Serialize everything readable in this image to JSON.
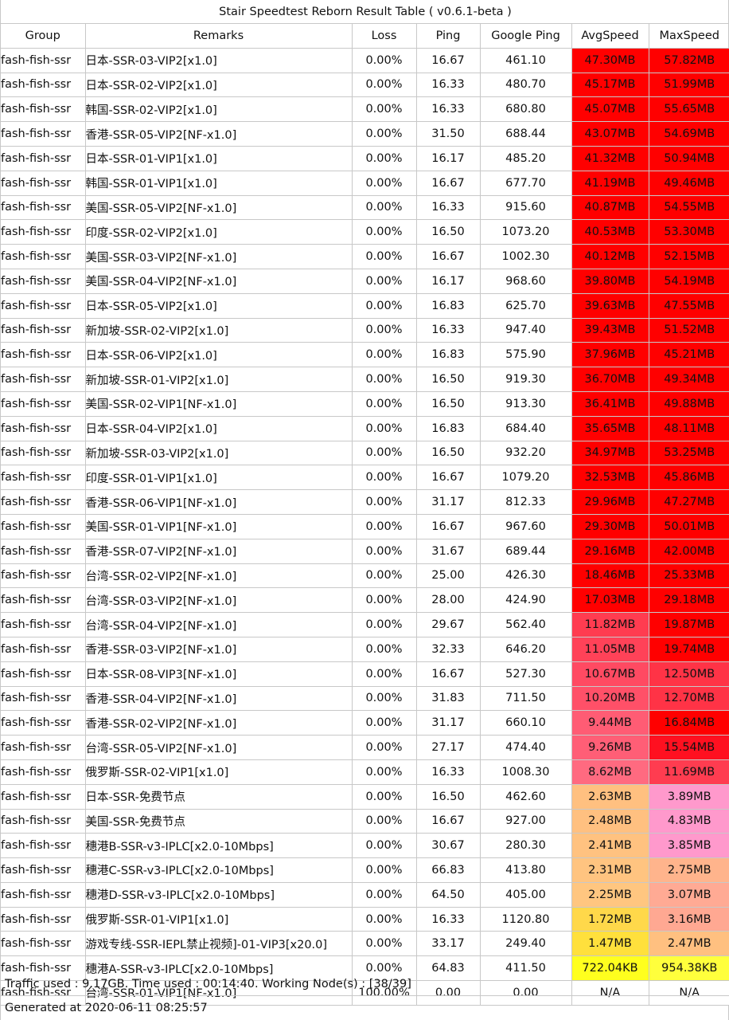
{
  "title": "Stair Speedtest Reborn Result Table ( v0.6.1-beta )",
  "columns": [
    "Group",
    "Remarks",
    "Loss",
    "Ping",
    "Google Ping",
    "AvgSpeed",
    "MaxSpeed"
  ],
  "rows": [
    {
      "group": "fash-fish-ssr",
      "remarks": "日本-SSR-03-VIP2[x1.0]",
      "loss": "0.00%",
      "ping": "16.67",
      "google_ping": "461.10",
      "avg": "47.30MB",
      "max": "57.82MB",
      "avg_color": "#ff0000",
      "max_color": "#ff0000"
    },
    {
      "group": "fash-fish-ssr",
      "remarks": "日本-SSR-02-VIP2[x1.0]",
      "loss": "0.00%",
      "ping": "16.33",
      "google_ping": "480.70",
      "avg": "45.17MB",
      "max": "51.99MB",
      "avg_color": "#ff0000",
      "max_color": "#ff0000"
    },
    {
      "group": "fash-fish-ssr",
      "remarks": "韩国-SSR-02-VIP2[x1.0]",
      "loss": "0.00%",
      "ping": "16.33",
      "google_ping": "680.80",
      "avg": "45.07MB",
      "max": "55.65MB",
      "avg_color": "#ff0000",
      "max_color": "#ff0000"
    },
    {
      "group": "fash-fish-ssr",
      "remarks": "香港-SSR-05-VIP2[NF-x1.0]",
      "loss": "0.00%",
      "ping": "31.50",
      "google_ping": "688.44",
      "avg": "43.07MB",
      "max": "54.69MB",
      "avg_color": "#ff0000",
      "max_color": "#ff0000"
    },
    {
      "group": "fash-fish-ssr",
      "remarks": "日本-SSR-01-VIP1[x1.0]",
      "loss": "0.00%",
      "ping": "16.17",
      "google_ping": "485.20",
      "avg": "41.32MB",
      "max": "50.94MB",
      "avg_color": "#ff0000",
      "max_color": "#ff0000"
    },
    {
      "group": "fash-fish-ssr",
      "remarks": "韩国-SSR-01-VIP1[x1.0]",
      "loss": "0.00%",
      "ping": "16.67",
      "google_ping": "677.70",
      "avg": "41.19MB",
      "max": "49.46MB",
      "avg_color": "#ff0000",
      "max_color": "#ff0000"
    },
    {
      "group": "fash-fish-ssr",
      "remarks": "美国-SSR-05-VIP2[NF-x1.0]",
      "loss": "0.00%",
      "ping": "16.33",
      "google_ping": "915.60",
      "avg": "40.87MB",
      "max": "54.55MB",
      "avg_color": "#ff0000",
      "max_color": "#ff0000"
    },
    {
      "group": "fash-fish-ssr",
      "remarks": "印度-SSR-02-VIP2[x1.0]",
      "loss": "0.00%",
      "ping": "16.50",
      "google_ping": "1073.20",
      "avg": "40.53MB",
      "max": "53.30MB",
      "avg_color": "#ff0000",
      "max_color": "#ff0000"
    },
    {
      "group": "fash-fish-ssr",
      "remarks": "美国-SSR-03-VIP2[NF-x1.0]",
      "loss": "0.00%",
      "ping": "16.67",
      "google_ping": "1002.30",
      "avg": "40.12MB",
      "max": "52.15MB",
      "avg_color": "#ff0000",
      "max_color": "#ff0000"
    },
    {
      "group": "fash-fish-ssr",
      "remarks": "美国-SSR-04-VIP2[NF-x1.0]",
      "loss": "0.00%",
      "ping": "16.17",
      "google_ping": "968.60",
      "avg": "39.80MB",
      "max": "54.19MB",
      "avg_color": "#ff0000",
      "max_color": "#ff0000"
    },
    {
      "group": "fash-fish-ssr",
      "remarks": "日本-SSR-05-VIP2[x1.0]",
      "loss": "0.00%",
      "ping": "16.83",
      "google_ping": "625.70",
      "avg": "39.63MB",
      "max": "47.55MB",
      "avg_color": "#ff0000",
      "max_color": "#ff0000"
    },
    {
      "group": "fash-fish-ssr",
      "remarks": "新加坡-SSR-02-VIP2[x1.0]",
      "loss": "0.00%",
      "ping": "16.33",
      "google_ping": "947.40",
      "avg": "39.43MB",
      "max": "51.52MB",
      "avg_color": "#ff0000",
      "max_color": "#ff0000"
    },
    {
      "group": "fash-fish-ssr",
      "remarks": "日本-SSR-06-VIP2[x1.0]",
      "loss": "0.00%",
      "ping": "16.83",
      "google_ping": "575.90",
      "avg": "37.96MB",
      "max": "45.21MB",
      "avg_color": "#ff0000",
      "max_color": "#ff0000"
    },
    {
      "group": "fash-fish-ssr",
      "remarks": "新加坡-SSR-01-VIP2[x1.0]",
      "loss": "0.00%",
      "ping": "16.50",
      "google_ping": "919.30",
      "avg": "36.70MB",
      "max": "49.34MB",
      "avg_color": "#ff0000",
      "max_color": "#ff0000"
    },
    {
      "group": "fash-fish-ssr",
      "remarks": "美国-SSR-02-VIP1[NF-x1.0]",
      "loss": "0.00%",
      "ping": "16.50",
      "google_ping": "913.30",
      "avg": "36.41MB",
      "max": "49.88MB",
      "avg_color": "#ff0000",
      "max_color": "#ff0000"
    },
    {
      "group": "fash-fish-ssr",
      "remarks": "日本-SSR-04-VIP2[x1.0]",
      "loss": "0.00%",
      "ping": "16.83",
      "google_ping": "684.40",
      "avg": "35.65MB",
      "max": "48.11MB",
      "avg_color": "#ff0000",
      "max_color": "#ff0000"
    },
    {
      "group": "fash-fish-ssr",
      "remarks": "新加坡-SSR-03-VIP2[x1.0]",
      "loss": "0.00%",
      "ping": "16.50",
      "google_ping": "932.20",
      "avg": "34.97MB",
      "max": "53.25MB",
      "avg_color": "#ff0000",
      "max_color": "#ff0000"
    },
    {
      "group": "fash-fish-ssr",
      "remarks": "印度-SSR-01-VIP1[x1.0]",
      "loss": "0.00%",
      "ping": "16.67",
      "google_ping": "1079.20",
      "avg": "32.53MB",
      "max": "45.86MB",
      "avg_color": "#ff0000",
      "max_color": "#ff0000"
    },
    {
      "group": "fash-fish-ssr",
      "remarks": "香港-SSR-06-VIP1[NF-x1.0]",
      "loss": "0.00%",
      "ping": "31.17",
      "google_ping": "812.33",
      "avg": "29.96MB",
      "max": "47.27MB",
      "avg_color": "#ff0000",
      "max_color": "#ff0000"
    },
    {
      "group": "fash-fish-ssr",
      "remarks": "美国-SSR-01-VIP1[NF-x1.0]",
      "loss": "0.00%",
      "ping": "16.67",
      "google_ping": "967.60",
      "avg": "29.30MB",
      "max": "50.01MB",
      "avg_color": "#ff0000",
      "max_color": "#ff0000"
    },
    {
      "group": "fash-fish-ssr",
      "remarks": "香港-SSR-07-VIP2[NF-x1.0]",
      "loss": "0.00%",
      "ping": "31.67",
      "google_ping": "689.44",
      "avg": "29.16MB",
      "max": "42.00MB",
      "avg_color": "#ff0000",
      "max_color": "#ff0000"
    },
    {
      "group": "fash-fish-ssr",
      "remarks": "台湾-SSR-02-VIP2[NF-x1.0]",
      "loss": "0.00%",
      "ping": "25.00",
      "google_ping": "426.30",
      "avg": "18.46MB",
      "max": "25.33MB",
      "avg_color": "#ff0000",
      "max_color": "#ff0000"
    },
    {
      "group": "fash-fish-ssr",
      "remarks": "台湾-SSR-03-VIP2[NF-x1.0]",
      "loss": "0.00%",
      "ping": "28.00",
      "google_ping": "424.90",
      "avg": "17.03MB",
      "max": "29.18MB",
      "avg_color": "#ff0000",
      "max_color": "#ff0000"
    },
    {
      "group": "fash-fish-ssr",
      "remarks": "台湾-SSR-04-VIP2[NF-x1.0]",
      "loss": "0.00%",
      "ping": "29.67",
      "google_ping": "562.40",
      "avg": "11.82MB",
      "max": "19.87MB",
      "avg_color": "#ff3c50",
      "max_color": "#ff0000"
    },
    {
      "group": "fash-fish-ssr",
      "remarks": "香港-SSR-03-VIP2[NF-x1.0]",
      "loss": "0.00%",
      "ping": "32.33",
      "google_ping": "646.20",
      "avg": "11.05MB",
      "max": "19.74MB",
      "avg_color": "#ff4258",
      "max_color": "#ff0000"
    },
    {
      "group": "fash-fish-ssr",
      "remarks": "日本-SSR-08-VIP3[NF-x1.0]",
      "loss": "0.00%",
      "ping": "16.67",
      "google_ping": "527.30",
      "avg": "10.67MB",
      "max": "12.50MB",
      "avg_color": "#ff4a62",
      "max_color": "#ff3346"
    },
    {
      "group": "fash-fish-ssr",
      "remarks": "香港-SSR-04-VIP2[NF-x1.0]",
      "loss": "0.00%",
      "ping": "31.83",
      "google_ping": "711.50",
      "avg": "10.20MB",
      "max": "12.70MB",
      "avg_color": "#ff5068",
      "max_color": "#ff3346"
    },
    {
      "group": "fash-fish-ssr",
      "remarks": "香港-SSR-02-VIP2[NF-x1.0]",
      "loss": "0.00%",
      "ping": "31.17",
      "google_ping": "660.10",
      "avg": "9.44MB",
      "max": "16.84MB",
      "avg_color": "#ff5c74",
      "max_color": "#ff0000"
    },
    {
      "group": "fash-fish-ssr",
      "remarks": "台湾-SSR-05-VIP2[NF-x1.0]",
      "loss": "0.00%",
      "ping": "27.17",
      "google_ping": "474.40",
      "avg": "9.26MB",
      "max": "15.54MB",
      "avg_color": "#ff5e76",
      "max_color": "#ff1020"
    },
    {
      "group": "fash-fish-ssr",
      "remarks": "俄罗斯-SSR-02-VIP1[x1.0]",
      "loss": "0.00%",
      "ping": "16.33",
      "google_ping": "1008.30",
      "avg": "8.62MB",
      "max": "11.69MB",
      "avg_color": "#ff6a80",
      "max_color": "#ff3c50"
    },
    {
      "group": "fash-fish-ssr",
      "remarks": "日本-SSR-免费节点",
      "loss": "0.00%",
      "ping": "16.50",
      "google_ping": "462.60",
      "avg": "2.63MB",
      "max": "3.89MB",
      "avg_color": "#ffc080",
      "max_color": "#ff99cc"
    },
    {
      "group": "fash-fish-ssr",
      "remarks": "美国-SSR-免费节点",
      "loss": "0.00%",
      "ping": "16.67",
      "google_ping": "927.00",
      "avg": "2.48MB",
      "max": "4.83MB",
      "avg_color": "#ffc080",
      "max_color": "#ff99cc"
    },
    {
      "group": "fash-fish-ssr",
      "remarks": "穗港B-SSR-v3-IPLC[x2.0-10Mbps]",
      "loss": "0.00%",
      "ping": "30.67",
      "google_ping": "280.30",
      "avg": "2.41MB",
      "max": "3.85MB",
      "avg_color": "#ffc280",
      "max_color": "#ff99cc"
    },
    {
      "group": "fash-fish-ssr",
      "remarks": "穗港C-SSR-v3-IPLC[x2.0-10Mbps]",
      "loss": "0.00%",
      "ping": "66.83",
      "google_ping": "413.80",
      "avg": "2.31MB",
      "max": "2.75MB",
      "avg_color": "#ffc480",
      "max_color": "#ffb48c"
    },
    {
      "group": "fash-fish-ssr",
      "remarks": "穗港D-SSR-v3-IPLC[x2.0-10Mbps]",
      "loss": "0.00%",
      "ping": "64.50",
      "google_ping": "405.00",
      "avg": "2.25MB",
      "max": "3.07MB",
      "avg_color": "#ffc680",
      "max_color": "#ffaa94"
    },
    {
      "group": "fash-fish-ssr",
      "remarks": "俄罗斯-SSR-01-VIP1[x1.0]",
      "loss": "0.00%",
      "ping": "16.33",
      "google_ping": "1120.80",
      "avg": "1.72MB",
      "max": "3.16MB",
      "avg_color": "#ffd84a",
      "max_color": "#ffa892"
    },
    {
      "group": "fash-fish-ssr",
      "remarks": "游戏专线-SSR-IEPL禁止视频]-01-VIP3[x20.0]",
      "loss": "0.00%",
      "ping": "33.17",
      "google_ping": "249.40",
      "avg": "1.47MB",
      "max": "2.47MB",
      "avg_color": "#ffe03c",
      "max_color": "#ffc080"
    },
    {
      "group": "fash-fish-ssr",
      "remarks": "穗港A-SSR-v3-IPLC[x2.0-10Mbps]",
      "loss": "0.00%",
      "ping": "64.83",
      "google_ping": "411.50",
      "avg": "722.04KB",
      "max": "954.38KB",
      "avg_color": "#ffff1e",
      "max_color": "#ffff3c"
    },
    {
      "group": "fash-fish-ssr",
      "remarks": "台湾-SSR-01-VIP1[NF-x1.0]",
      "loss": "100.00%",
      "ping": "0.00",
      "google_ping": "0.00",
      "avg": "N/A",
      "max": "N/A",
      "avg_color": "#ffffff",
      "max_color": "#ffffff"
    }
  ],
  "footer": {
    "traffic": "Traffic used : 9.17GB. Time used : 00:14:40. Working Node(s) : [38/39]",
    "generated": "Generated at 2020-06-11 08:25:57"
  }
}
